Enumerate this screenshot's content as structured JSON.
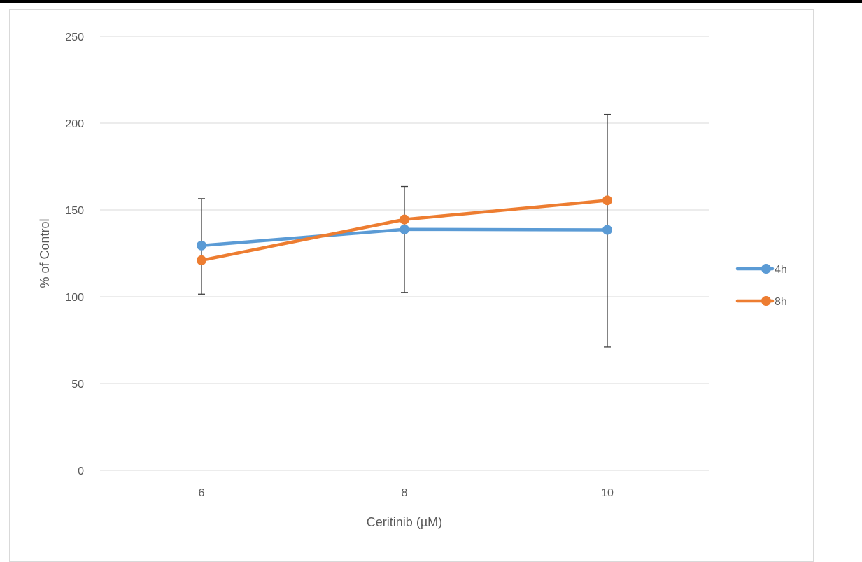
{
  "chart_data": {
    "type": "line",
    "title": "",
    "xlabel": "Ceritinib (µM)",
    "ylabel": "% of Control",
    "categories": [
      "6",
      "8",
      "10"
    ],
    "ylim": [
      0,
      250
    ],
    "yticks": [
      0,
      50,
      100,
      150,
      200,
      250
    ],
    "grid": true,
    "legend_position": "right",
    "series": [
      {
        "name": "4h",
        "color": "#5b9bd5",
        "values": [
          129.5,
          138.8,
          138.5
        ],
        "error_bars": null
      },
      {
        "name": "8h",
        "color": "#ed7d31",
        "values": [
          121,
          144.5,
          155.5
        ],
        "error_bars": [
          [
            101.5,
            156.5
          ],
          [
            102.5,
            163.5
          ],
          [
            71,
            205
          ]
        ]
      }
    ],
    "colors": {
      "grid": "#d9d9d9",
      "text": "#595959",
      "error_bar": "#404040"
    }
  }
}
